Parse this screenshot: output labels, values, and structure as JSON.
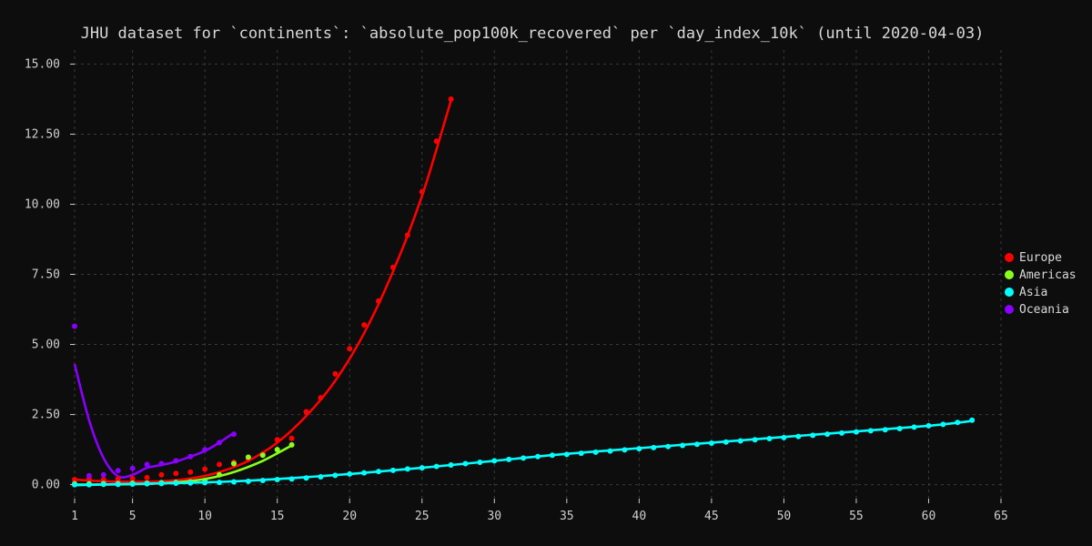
{
  "chart_data": {
    "type": "scatter",
    "title": "JHU dataset for `continents`: `absolute_pop100k_recovered` per `day_index_10k` (until 2020-04-03)",
    "xlabel": "",
    "ylabel": "",
    "xlim": [
      1,
      65
    ],
    "ylim": [
      0,
      15
    ],
    "x_ticks": [
      1,
      5,
      10,
      15,
      20,
      25,
      30,
      35,
      40,
      45,
      50,
      55,
      60,
      65
    ],
    "y_ticks": [
      0,
      2.5,
      5,
      7.5,
      10,
      12.5,
      15
    ],
    "y_tick_labels": [
      "0.00",
      "2.50",
      "5.00",
      "7.50",
      "10.00",
      "12.50",
      "15.00"
    ],
    "grid": true,
    "legend_position": "right",
    "series": [
      {
        "name": "Europe",
        "color": "#ff0000",
        "points": [
          [
            1,
            0.18
          ],
          [
            2,
            0.2
          ],
          [
            3,
            0.18
          ],
          [
            4,
            0.2
          ],
          [
            5,
            0.22
          ],
          [
            6,
            0.25
          ],
          [
            7,
            0.35
          ],
          [
            8,
            0.4
          ],
          [
            9,
            0.45
          ],
          [
            10,
            0.55
          ],
          [
            11,
            0.72
          ],
          [
            12,
            0.8
          ],
          [
            13,
            0.9
          ],
          [
            14,
            1.1
          ],
          [
            15,
            1.6
          ],
          [
            16,
            1.65
          ],
          [
            17,
            2.6
          ],
          [
            18,
            3.1
          ],
          [
            19,
            3.95
          ],
          [
            20,
            4.85
          ],
          [
            21,
            5.7
          ],
          [
            22,
            6.55
          ],
          [
            23,
            7.75
          ],
          [
            24,
            8.9
          ],
          [
            25,
            10.45
          ],
          [
            26,
            12.25
          ],
          [
            27,
            13.75
          ]
        ],
        "trend": [
          [
            1,
            0.18
          ],
          [
            3,
            0.12
          ],
          [
            5,
            0.1
          ],
          [
            7,
            0.12
          ],
          [
            9,
            0.22
          ],
          [
            11,
            0.45
          ],
          [
            13,
            0.85
          ],
          [
            15,
            1.5
          ],
          [
            17,
            2.45
          ],
          [
            19,
            3.7
          ],
          [
            21,
            5.4
          ],
          [
            23,
            7.6
          ],
          [
            25,
            10.3
          ],
          [
            27,
            13.7
          ]
        ]
      },
      {
        "name": "Americas",
        "color": "#88ff1a",
        "points": [
          [
            1,
            0.03
          ],
          [
            2,
            0.03
          ],
          [
            3,
            0.04
          ],
          [
            4,
            0.04
          ],
          [
            5,
            0.05
          ],
          [
            6,
            0.05
          ],
          [
            7,
            0.07
          ],
          [
            8,
            0.08
          ],
          [
            9,
            0.1
          ],
          [
            10,
            0.15
          ],
          [
            11,
            0.35
          ],
          [
            12,
            0.75
          ],
          [
            13,
            0.98
          ],
          [
            14,
            1.05
          ],
          [
            15,
            1.25
          ],
          [
            16,
            1.42
          ]
        ],
        "trend": [
          [
            1,
            0.0
          ],
          [
            4,
            0.01
          ],
          [
            6,
            0.03
          ],
          [
            8,
            0.08
          ],
          [
            10,
            0.2
          ],
          [
            12,
            0.45
          ],
          [
            14,
            0.85
          ],
          [
            16,
            1.4
          ]
        ]
      },
      {
        "name": "Asia",
        "color": "#00ffff",
        "points": [
          [
            1,
            0.0
          ],
          [
            2,
            0.0
          ],
          [
            3,
            0.01
          ],
          [
            4,
            0.01
          ],
          [
            5,
            0.02
          ],
          [
            6,
            0.03
          ],
          [
            7,
            0.04
          ],
          [
            8,
            0.05
          ],
          [
            9,
            0.06
          ],
          [
            10,
            0.07
          ],
          [
            11,
            0.08
          ],
          [
            12,
            0.1
          ],
          [
            13,
            0.12
          ],
          [
            14,
            0.15
          ],
          [
            15,
            0.18
          ],
          [
            16,
            0.2
          ],
          [
            17,
            0.24
          ],
          [
            18,
            0.28
          ],
          [
            19,
            0.33
          ],
          [
            20,
            0.38
          ],
          [
            21,
            0.42
          ],
          [
            22,
            0.47
          ],
          [
            23,
            0.51
          ],
          [
            24,
            0.56
          ],
          [
            25,
            0.6
          ],
          [
            26,
            0.65
          ],
          [
            27,
            0.7
          ],
          [
            28,
            0.75
          ],
          [
            29,
            0.8
          ],
          [
            30,
            0.85
          ],
          [
            31,
            0.9
          ],
          [
            32,
            0.95
          ],
          [
            33,
            1.0
          ],
          [
            34,
            1.05
          ],
          [
            35,
            1.08
          ],
          [
            36,
            1.12
          ],
          [
            37,
            1.16
          ],
          [
            38,
            1.2
          ],
          [
            39,
            1.24
          ],
          [
            40,
            1.28
          ],
          [
            41,
            1.32
          ],
          [
            42,
            1.36
          ],
          [
            43,
            1.4
          ],
          [
            44,
            1.44
          ],
          [
            45,
            1.48
          ],
          [
            46,
            1.52
          ],
          [
            47,
            1.56
          ],
          [
            48,
            1.6
          ],
          [
            49,
            1.64
          ],
          [
            50,
            1.68
          ],
          [
            51,
            1.72
          ],
          [
            52,
            1.76
          ],
          [
            53,
            1.8
          ],
          [
            54,
            1.84
          ],
          [
            55,
            1.88
          ],
          [
            56,
            1.92
          ],
          [
            57,
            1.96
          ],
          [
            58,
            2.0
          ],
          [
            59,
            2.05
          ],
          [
            60,
            2.1
          ],
          [
            61,
            2.15
          ],
          [
            62,
            2.22
          ],
          [
            63,
            2.3
          ]
        ],
        "trend": [
          [
            1,
            -0.02
          ],
          [
            5,
            0.03
          ],
          [
            10,
            0.08
          ],
          [
            15,
            0.2
          ],
          [
            20,
            0.38
          ],
          [
            25,
            0.6
          ],
          [
            30,
            0.85
          ],
          [
            35,
            1.1
          ],
          [
            40,
            1.3
          ],
          [
            45,
            1.5
          ],
          [
            50,
            1.7
          ],
          [
            55,
            1.9
          ],
          [
            60,
            2.1
          ],
          [
            63,
            2.27
          ]
        ]
      },
      {
        "name": "Oceania",
        "color": "#8a00ff",
        "points": [
          [
            1,
            5.65
          ],
          [
            2,
            0.32
          ],
          [
            3,
            0.35
          ],
          [
            4,
            0.5
          ],
          [
            5,
            0.58
          ],
          [
            6,
            0.72
          ],
          [
            7,
            0.75
          ],
          [
            8,
            0.85
          ],
          [
            9,
            1.0
          ],
          [
            10,
            1.25
          ],
          [
            11,
            1.5
          ],
          [
            12,
            1.8
          ]
        ],
        "trend": [
          [
            1,
            4.3
          ],
          [
            2,
            2.3
          ],
          [
            3,
            0.95
          ],
          [
            4,
            0.3
          ],
          [
            5,
            0.35
          ],
          [
            6,
            0.6
          ],
          [
            7,
            0.7
          ],
          [
            8,
            0.82
          ],
          [
            9,
            1.0
          ],
          [
            10,
            1.2
          ],
          [
            11,
            1.5
          ],
          [
            12,
            1.85
          ]
        ]
      }
    ]
  }
}
